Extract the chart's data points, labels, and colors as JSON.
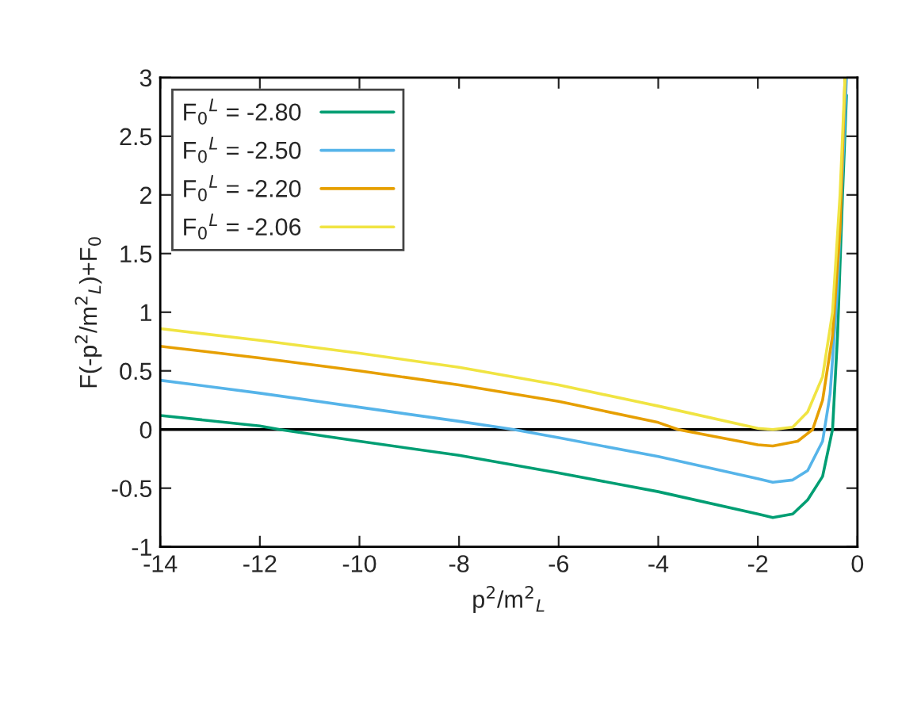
{
  "chart_data": {
    "type": "line",
    "xlabel": "p$^{2}$/m$^{2}$$_{L}$",
    "ylabel": "F(-p$^{2}$/m$^{2}$$_{L}$)+F$_{0}$",
    "xlim": [
      -14,
      0
    ],
    "ylim": [
      -1,
      3
    ],
    "xticks": [
      -14,
      -12,
      -10,
      -8,
      -6,
      -4,
      -2,
      0
    ],
    "yticks": [
      -1,
      -0.5,
      0,
      0.5,
      1,
      1.5,
      2,
      2.5,
      3
    ],
    "grid": false,
    "legend": "top left",
    "marker": "none",
    "line_style": "solid",
    "ref_lines": [
      {
        "axis": "y",
        "value": 0,
        "color": "#000000"
      }
    ],
    "series": [
      {
        "name": "F$_{0}$$^{L}$ = -2.80",
        "color": "#009e73",
        "x": [
          -14,
          -12,
          -11.6,
          -10,
          -8,
          -6,
          -4,
          -2,
          -1.7,
          -1.3,
          -1,
          -0.7,
          -0.5,
          -0.4,
          -0.3,
          -0.22
        ],
        "values": [
          0.12,
          0.03,
          0,
          -0.1,
          -0.22,
          -0.37,
          -0.53,
          -0.72,
          -0.75,
          -0.72,
          -0.6,
          -0.4,
          0,
          0.8,
          2,
          2.85
        ]
      },
      {
        "name": "F$_{0}$$^{L}$ = -2.50",
        "color": "#56b4e9",
        "x": [
          -14,
          -12,
          -10,
          -8,
          -6.9,
          -6,
          -4,
          -2,
          -1.7,
          -1.3,
          -1,
          -0.7,
          -0.55,
          -0.4,
          -0.3,
          -0.22
        ],
        "values": [
          0.42,
          0.31,
          0.19,
          0.07,
          0,
          -0.07,
          -0.23,
          -0.42,
          -0.45,
          -0.43,
          -0.35,
          -0.1,
          0.3,
          1.2,
          2.2,
          3
        ]
      },
      {
        "name": "F$_{0}$$^{L}$ = -2.20",
        "color": "#e69f00",
        "x": [
          -14,
          -12,
          -10,
          -8,
          -6,
          -4,
          -3.6,
          -2,
          -1.7,
          -1.2,
          -0.9,
          -0.7,
          -0.5,
          -0.35,
          -0.25
        ],
        "values": [
          0.71,
          0.61,
          0.5,
          0.38,
          0.24,
          0.06,
          0,
          -0.13,
          -0.14,
          -0.1,
          0,
          0.25,
          0.8,
          1.7,
          3
        ]
      },
      {
        "name": "F$_{0}$$^{L}$ = -2.06",
        "color": "#f0e442",
        "x": [
          -14,
          -12,
          -10,
          -8,
          -6,
          -4,
          -2,
          -1.7,
          -1.3,
          -1,
          -0.7,
          -0.5,
          -0.35,
          -0.25
        ],
        "values": [
          0.86,
          0.76,
          0.65,
          0.53,
          0.38,
          0.2,
          0.01,
          0,
          0.02,
          0.15,
          0.45,
          1.0,
          2,
          3
        ]
      }
    ]
  }
}
